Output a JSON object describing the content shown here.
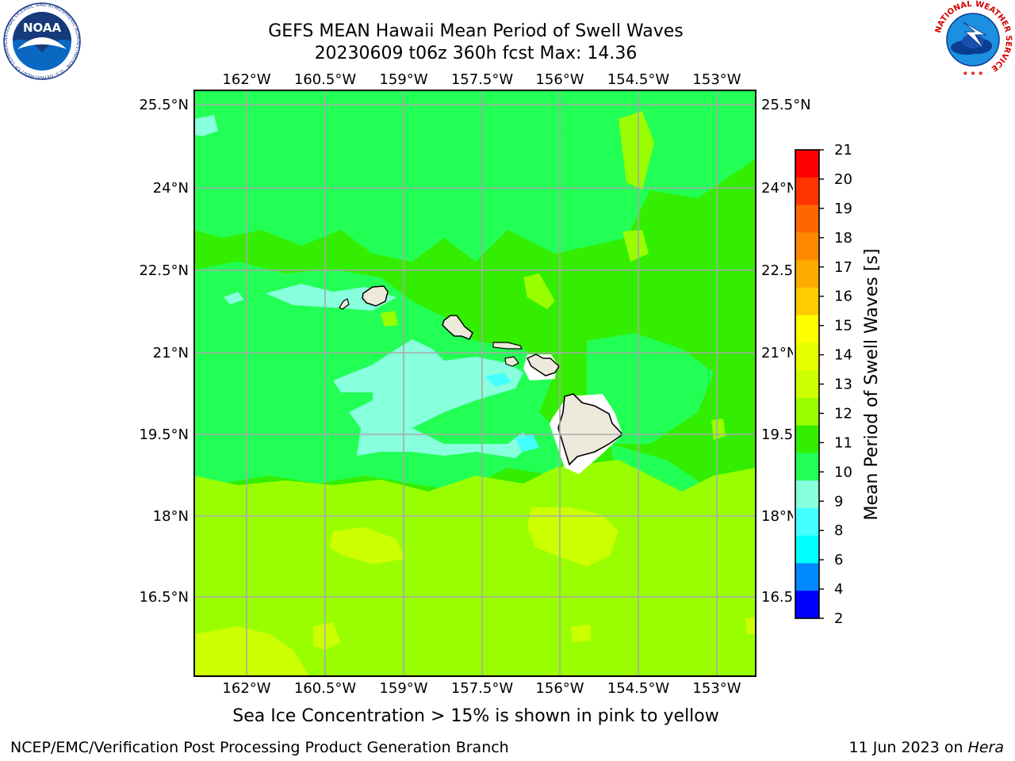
{
  "header": {
    "title_line1": "GEFS MEAN Hawaii Mean Period of Swell Waves",
    "title_line2": "20230609 t06z 360h fcst   Max: 14.36"
  },
  "map": {
    "lon_labels": [
      "162°W",
      "160.5°W",
      "159°W",
      "157.5°W",
      "156°W",
      "154.5°W",
      "153°W"
    ],
    "lat_labels": [
      "25.5°N",
      "24°N",
      "22.5°N",
      "21°N",
      "19.5°N",
      "18°N",
      "16.5°N"
    ],
    "islands": [
      "Kauai",
      "Oahu",
      "Molokai",
      "Maui",
      "Hawaii"
    ]
  },
  "colorbar": {
    "label": "Mean Period of Swell Waves [s]",
    "ticks": [
      "21",
      "20",
      "19",
      "18",
      "17",
      "16",
      "15",
      "14",
      "13",
      "12",
      "11",
      "10",
      "9",
      "8",
      "6",
      "4",
      "2"
    ],
    "colors": [
      "#ff0000",
      "#ff3300",
      "#ff6600",
      "#ff8800",
      "#ffaa00",
      "#ffcc00",
      "#ffff00",
      "#e6ff00",
      "#ccff00",
      "#99ff00",
      "#33ee00",
      "#22ff55",
      "#88ffdd",
      "#44ffff",
      "#00ffff",
      "#0088ff",
      "#0000ff"
    ]
  },
  "caption": "Sea Ice Concentration > 15% is shown in pink to yellow",
  "footer": {
    "left": "NCEP/EMC/Verification Post Processing Product Generation Branch",
    "right_date": "11 Jun 2023 on ",
    "right_machine": "Hera"
  },
  "logos": {
    "noaa_text": "NOAA",
    "noaa_ring_text": "NATIONAL OCEANIC AND ATMOSPHERIC ADMINISTRATION · U.S. DEPARTMENT OF COMMERCE",
    "nws_ring_text": "NATIONAL WEATHER SERVICE"
  }
}
